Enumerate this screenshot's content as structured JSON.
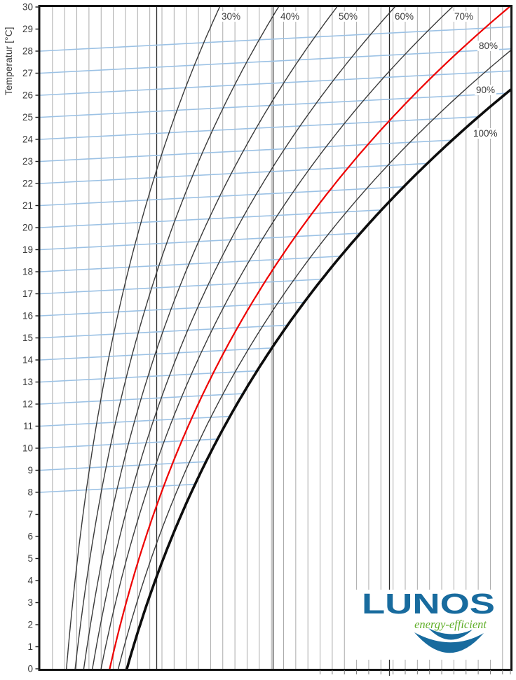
{
  "y_axis": {
    "label": "Temperatur [°C]",
    "ticks": [
      30,
      29,
      28,
      27,
      26,
      25,
      24,
      23,
      22,
      21,
      20,
      19,
      18,
      17,
      16,
      15,
      14,
      13,
      12,
      11,
      10,
      9,
      8,
      7,
      6,
      5,
      4,
      3,
      2,
      1,
      0
    ],
    "range": [
      0,
      30
    ],
    "tick_color": "#3a3a3a"
  },
  "x_axis": {
    "label": "",
    "tick_labels_visible": false
  },
  "chart_data": {
    "type": "line",
    "title": "",
    "xlabel": "",
    "ylabel": "Temperatur [°C]",
    "ylim": [
      0,
      30
    ],
    "description": "Relative humidity curves (dew point / Mollier style diagram), temperature vs moisture content; 80% curve highlighted red, 100% saturation curve thick black; sloped light blue isotherm guide lines ending on the saturation curve.",
    "series": [
      {
        "label": "30%",
        "rh": 0.3,
        "color": "#3a3a3a",
        "width": 1.4
      },
      {
        "label": "40%",
        "rh": 0.4,
        "color": "#3a3a3a",
        "width": 1.4
      },
      {
        "label": "50%",
        "rh": 0.5,
        "color": "#3a3a3a",
        "width": 1.4
      },
      {
        "label": "60%",
        "rh": 0.6,
        "color": "#3a3a3a",
        "width": 1.4
      },
      {
        "label": "70%",
        "rh": 0.7,
        "color": "#3a3a3a",
        "width": 1.4
      },
      {
        "label": "80%",
        "rh": 0.8,
        "color": "#ee0000",
        "width": 2.2
      },
      {
        "label": "90%",
        "rh": 0.9,
        "color": "#3a3a3a",
        "width": 1.4
      },
      {
        "label": "100%",
        "rh": 1.0,
        "color": "#0d0d0d",
        "width": 3.6
      }
    ],
    "iso_lines": {
      "color": "#9cc2e5",
      "width": 1.6,
      "start_temps": [
        8,
        9,
        10,
        11,
        12,
        13,
        14,
        15,
        16,
        17,
        18,
        19,
        20,
        21,
        22,
        23,
        24,
        25,
        26,
        27,
        28
      ],
      "rise_deg_over_full_width": 1.1
    },
    "grid": {
      "minor_color": "#ababab",
      "major_color": "#2b2b2b",
      "major_positions_g_per_kg": [
        5,
        10,
        15
      ],
      "x_range_g_per_kg": [
        0,
        20.2
      ]
    },
    "frame_color": "#141414"
  },
  "logo": {
    "brand": "LUNOS",
    "tagline": "energy-efficient",
    "brand_color": "#186b9e",
    "tagline_color": "#5fae27"
  }
}
